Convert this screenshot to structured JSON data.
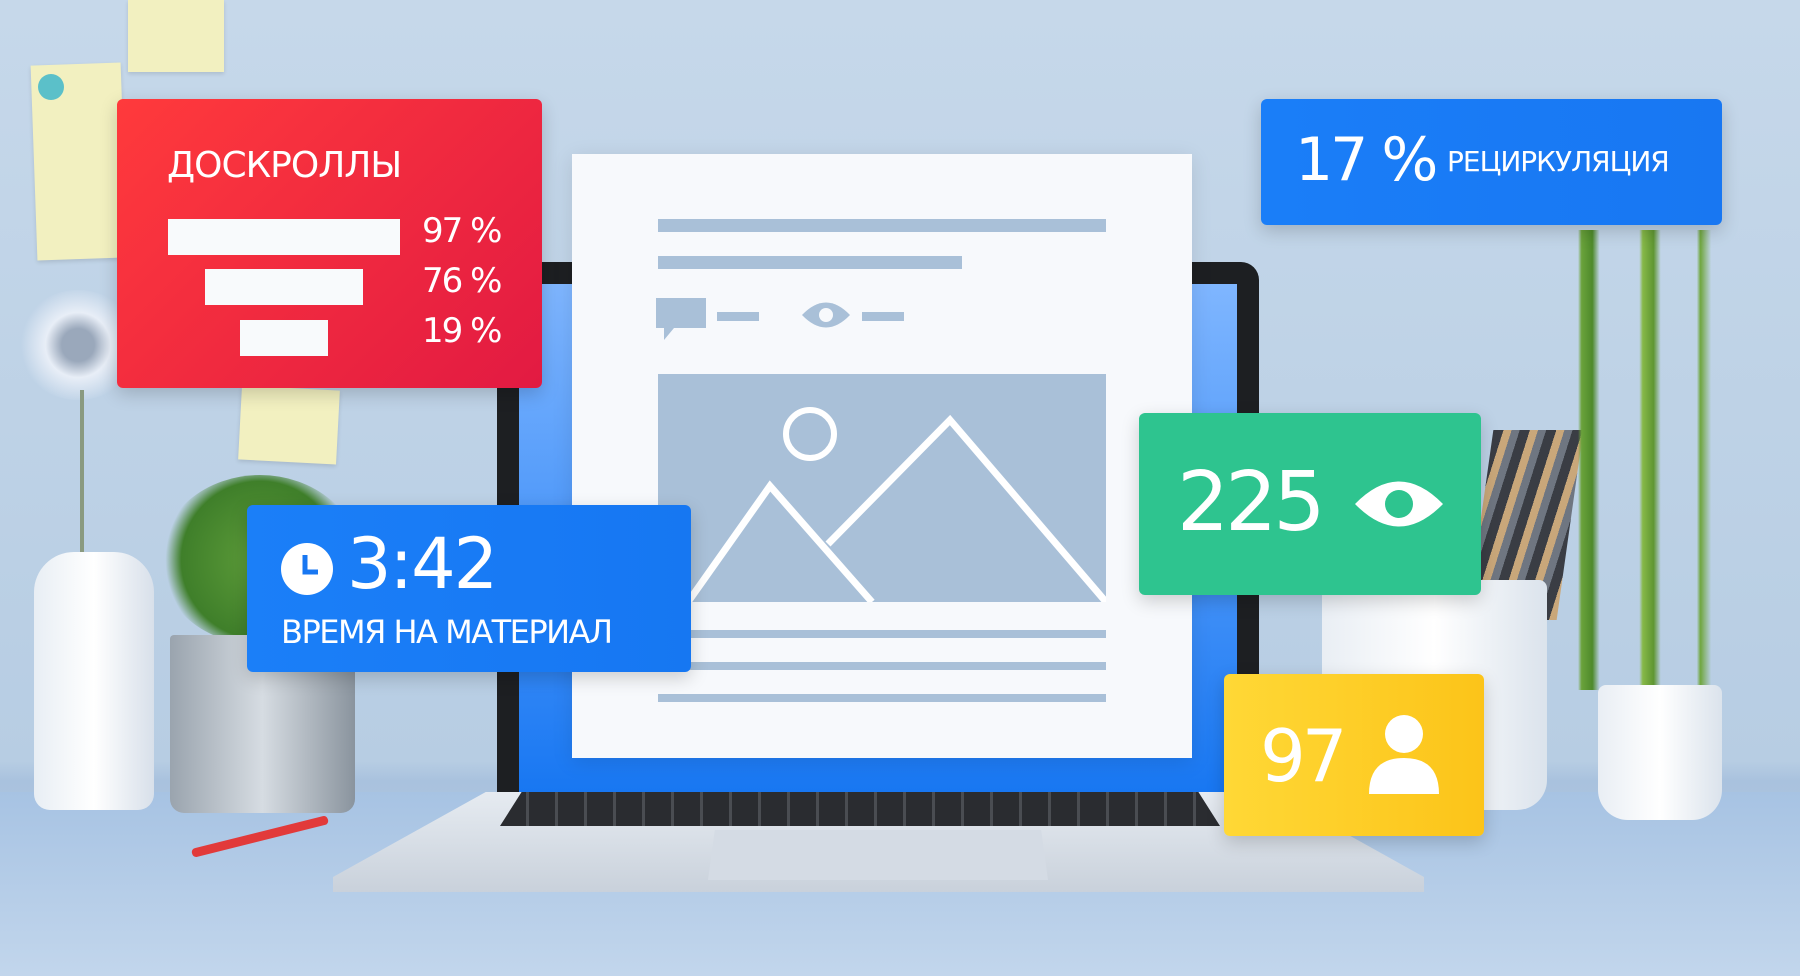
{
  "scroll_card": {
    "title": "ДОСКРОЛЛЫ",
    "rows": [
      {
        "value": 97,
        "label": "97 %"
      },
      {
        "value": 76,
        "label": "76 %"
      },
      {
        "value": 19,
        "label": "19 %"
      }
    ],
    "color": "#e8213f"
  },
  "recirculation_card": {
    "value": "17 %",
    "label": "РЕЦИРКУЛЯЦИЯ",
    "color": "#1877f2"
  },
  "time_card": {
    "icon": "clock-icon",
    "value": "3:42",
    "label": "ВРЕМЯ НА МАТЕРИАЛ",
    "color": "#1877f2"
  },
  "views_card": {
    "value": "225",
    "icon": "eye-icon",
    "color": "#2ec48f"
  },
  "users_card": {
    "value": "97",
    "icon": "user-icon",
    "color": "#fcc419"
  },
  "document": {
    "icons": [
      "comment-icon",
      "eye-icon",
      "image-placeholder-icon"
    ]
  }
}
